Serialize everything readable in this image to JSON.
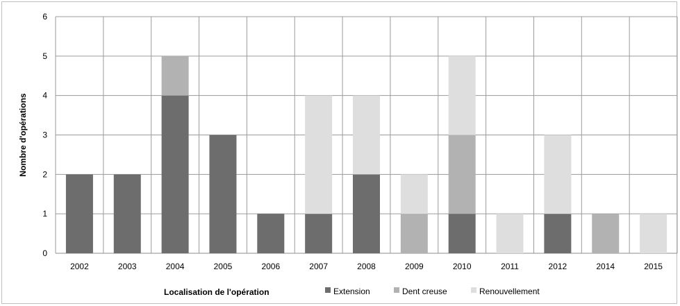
{
  "chart_data": {
    "type": "bar",
    "stacked": true,
    "categories": [
      "2002",
      "2003",
      "2004",
      "2005",
      "2006",
      "2007",
      "2008",
      "2009",
      "2010",
      "2011",
      "2012",
      "2014",
      "2015"
    ],
    "series": [
      {
        "name": "Extension",
        "color": "#6d6d6d",
        "values": [
          2,
          2,
          4,
          3,
          1,
          1,
          2,
          0,
          1,
          0,
          1,
          0,
          0
        ]
      },
      {
        "name": "Dent creuse",
        "color": "#b2b2b2",
        "values": [
          0,
          0,
          1,
          0,
          0,
          0,
          0,
          1,
          2,
          0,
          0,
          1,
          0
        ]
      },
      {
        "name": "Renouvellement",
        "color": "#dedede",
        "values": [
          0,
          0,
          0,
          0,
          0,
          3,
          2,
          1,
          2,
          1,
          2,
          0,
          1
        ]
      }
    ],
    "title": "",
    "xlabel": "Localisation de l'opération",
    "ylabel": "Nombre d'opérations",
    "ylim": [
      0,
      6
    ],
    "yticks": [
      0,
      1,
      2,
      3,
      4,
      5,
      6
    ],
    "grid": "both",
    "legend_position": "bottom"
  }
}
